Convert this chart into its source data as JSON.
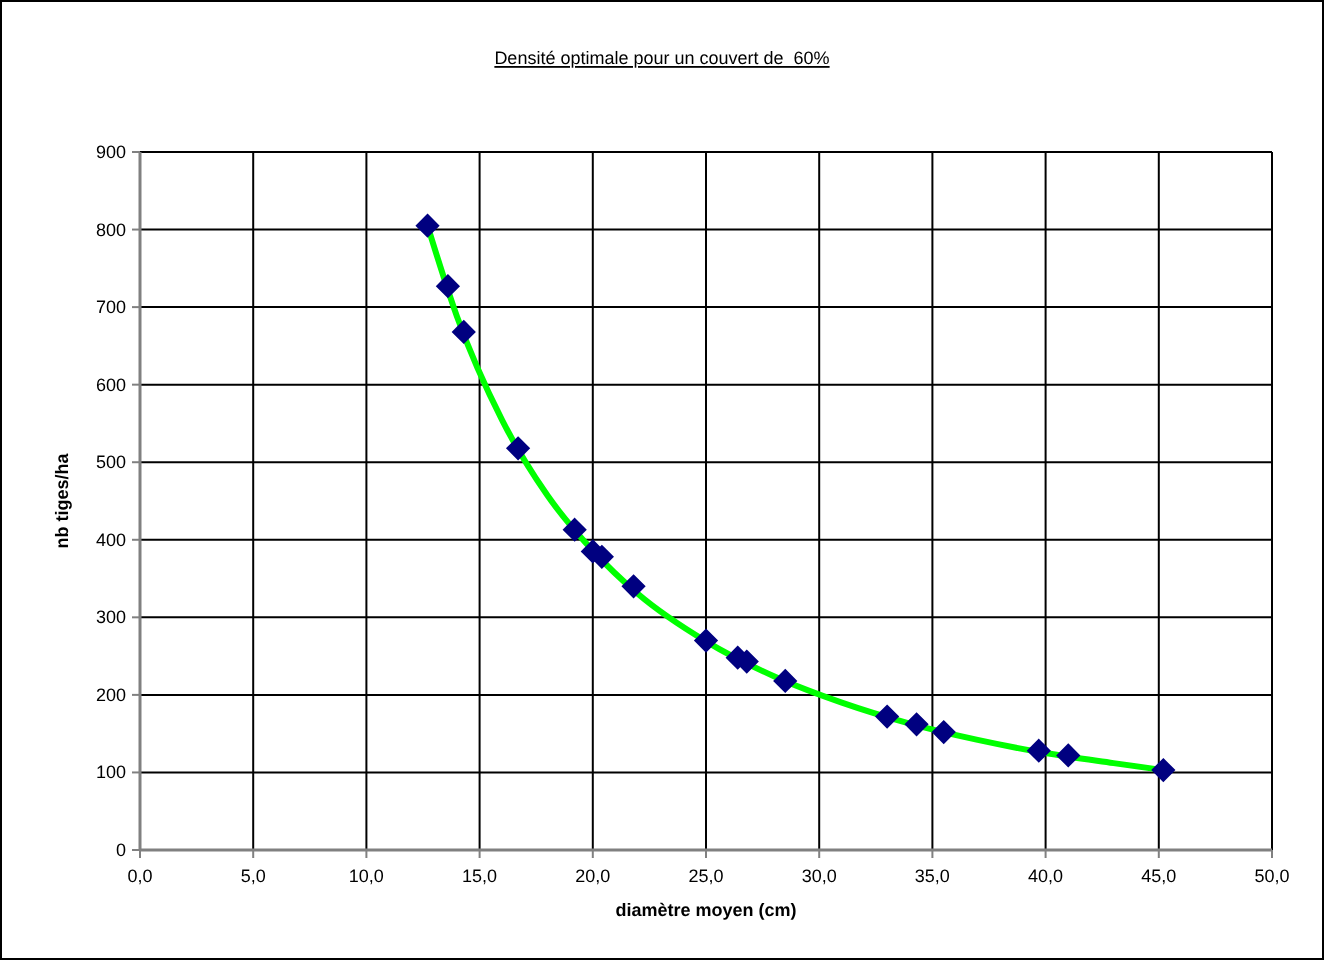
{
  "chart_data": {
    "type": "scatter",
    "title": "Densité optimale pour un couvert de  60%",
    "xlabel": "diamètre moyen (cm)",
    "ylabel": "nb tiges/ha",
    "xlim": [
      0,
      50
    ],
    "xticks": [
      {
        "value": 0,
        "label": "0,0"
      },
      {
        "value": 5,
        "label": "5,0"
      },
      {
        "value": 10,
        "label": "10,0"
      },
      {
        "value": 15,
        "label": "15,0"
      },
      {
        "value": 20,
        "label": "20,0"
      },
      {
        "value": 25,
        "label": "25,0"
      },
      {
        "value": 30,
        "label": "30,0"
      },
      {
        "value": 35,
        "label": "35,0"
      },
      {
        "value": 40,
        "label": "40,0"
      },
      {
        "value": 45,
        "label": "45,0"
      },
      {
        "value": 50,
        "label": "50,0"
      }
    ],
    "ylim": [
      0,
      900
    ],
    "yticks": [
      0,
      100,
      200,
      300,
      400,
      500,
      600,
      700,
      800,
      900
    ],
    "grid": true,
    "legend": false,
    "series": [
      {
        "type": "line",
        "color": "#00ff00",
        "marker": "none",
        "x": [
          12.7,
          14,
          16,
          18,
          20,
          22,
          25,
          28,
          31,
          34,
          37,
          40,
          43,
          45.2
        ],
        "values": [
          805,
          688,
          554,
          457,
          386,
          330,
          269,
          224,
          190,
          163,
          142,
          125,
          112,
          103
        ]
      },
      {
        "color": "#000080",
        "marker": "diamond",
        "x": [
          12.7,
          13.6,
          14.3,
          16.7,
          19.2,
          20.0,
          20.4,
          21.8,
          25.0,
          26.4,
          26.8,
          28.5,
          33.0,
          34.3,
          35.5,
          39.7,
          41.0,
          45.2
        ],
        "values": [
          805,
          727,
          668,
          518,
          413,
          385,
          378,
          340,
          270,
          248,
          243,
          218,
          172,
          162,
          152,
          128,
          122,
          103
        ]
      }
    ]
  }
}
